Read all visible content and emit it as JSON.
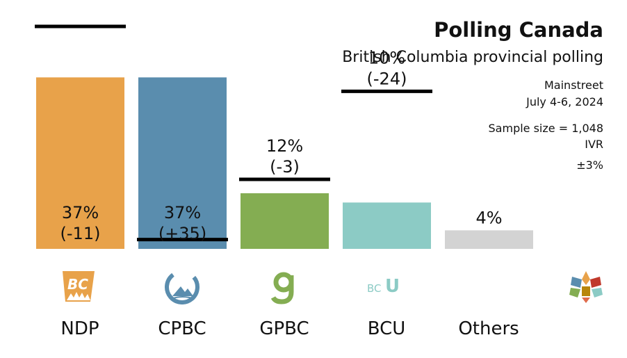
{
  "header": {
    "title": "Polling Canada",
    "subtitle": "British Columbia provincial polling"
  },
  "meta": {
    "pollster": "Mainstreet",
    "dates": "July 4-6, 2024",
    "sample": "Sample size = 1,048",
    "method": "IVR",
    "margin": "±3%"
  },
  "colors": {
    "NDP": "#E8A24A",
    "CPBC": "#5A8DAE",
    "GPBC": "#84AD52",
    "BCU": "#8CCBC5",
    "Others": "#D3D3D3"
  },
  "logos": {
    "NDP": "bc-ndp-logo",
    "CPBC": "cpbc-logo",
    "GPBC": "green-g-logo",
    "BCU": "bcu-logo",
    "source": "polling-canada-logo"
  },
  "chart_data": {
    "type": "bar",
    "categories": [
      "NDP",
      "CPBC",
      "GPBC",
      "BCU",
      "Others"
    ],
    "values": [
      37,
      37,
      12,
      10,
      4
    ],
    "value_labels": [
      "37%",
      "37%",
      "12%",
      "10%",
      "4%"
    ],
    "change_labels": [
      "(-11)",
      "(+35)",
      "(-3)",
      "(-24)",
      ""
    ],
    "previous_values": [
      48,
      2,
      15,
      34,
      null
    ],
    "ylim": [
      0,
      48
    ]
  }
}
